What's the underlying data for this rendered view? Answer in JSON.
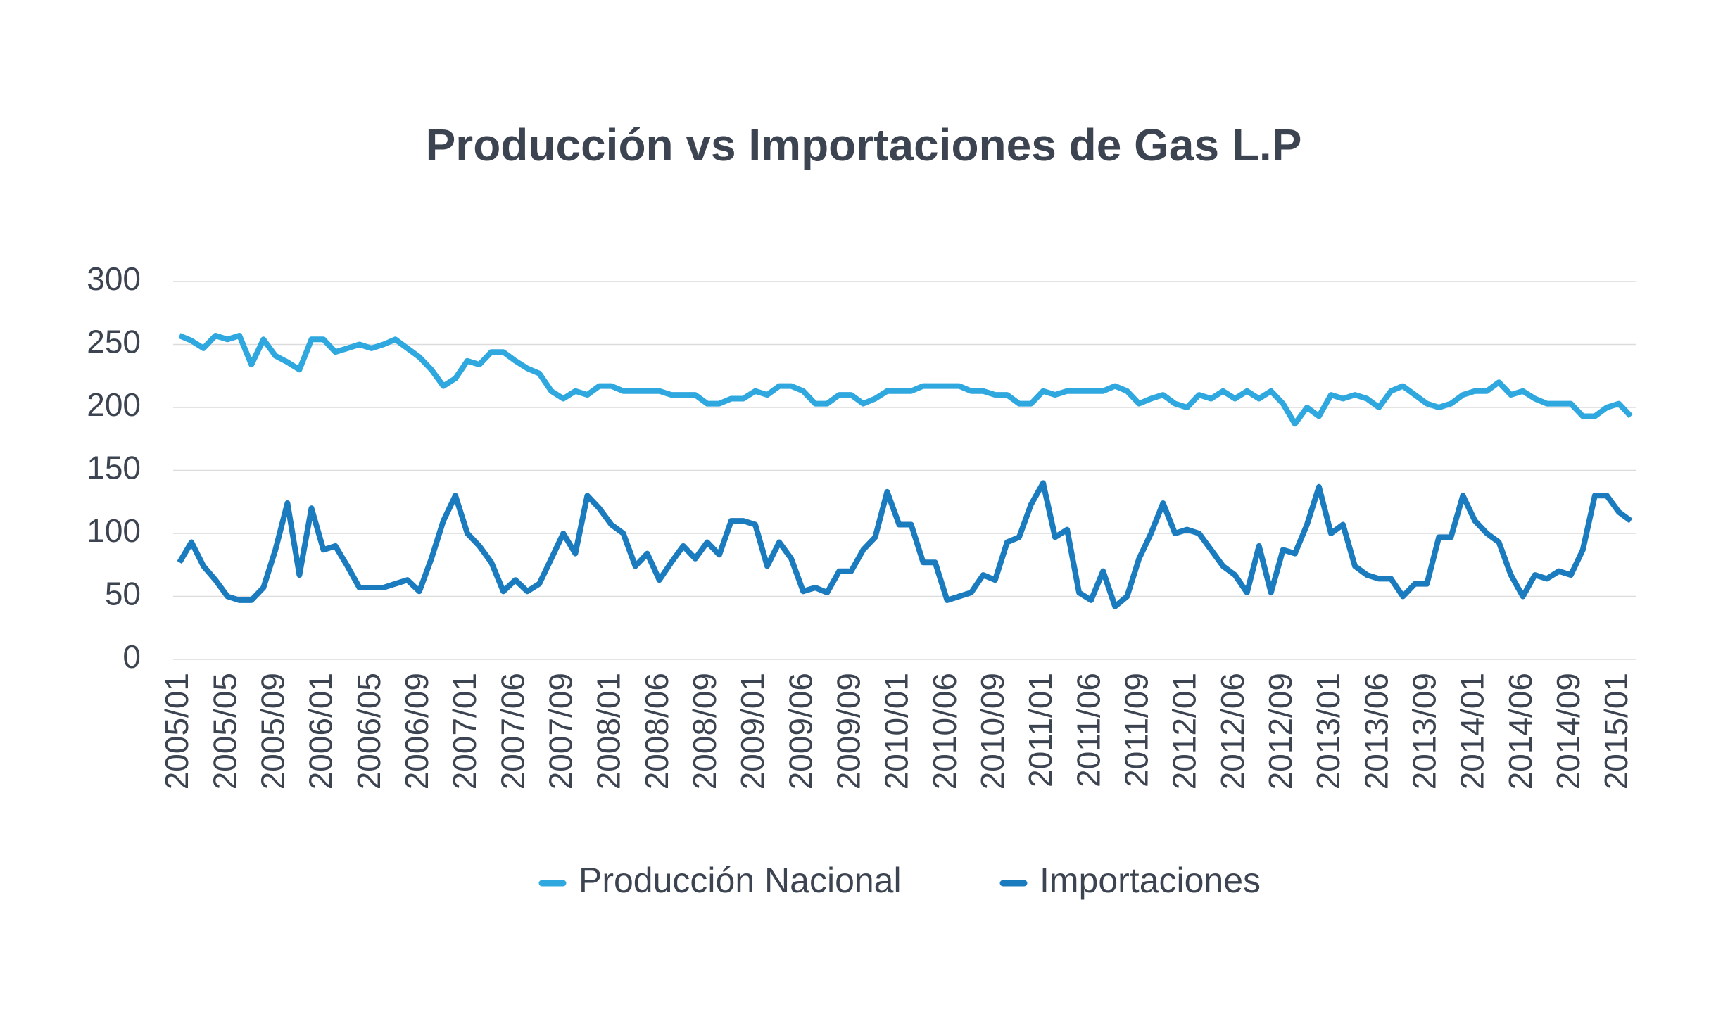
{
  "chart_data": {
    "type": "line",
    "title": "Producción vs Importaciones de Gas L.P",
    "categories": [
      "2005/01",
      null,
      null,
      null,
      "2005/05",
      null,
      null,
      null,
      "2005/09",
      null,
      null,
      null,
      "2006/01",
      null,
      null,
      null,
      "2006/05",
      null,
      null,
      null,
      "2006/09",
      null,
      null,
      null,
      "2007/01",
      null,
      null,
      null,
      "2007/06",
      null,
      null,
      null,
      "2007/09",
      null,
      null,
      null,
      "2008/01",
      null,
      null,
      null,
      "2008/06",
      null,
      null,
      null,
      "2008/09",
      null,
      null,
      null,
      "2009/01",
      null,
      null,
      null,
      "2009/06",
      null,
      null,
      null,
      "2009/09",
      null,
      null,
      null,
      "2010/01",
      null,
      null,
      null,
      "2010/06",
      null,
      null,
      null,
      "2010/09",
      null,
      null,
      null,
      "2011/01",
      null,
      null,
      null,
      "2011/06",
      null,
      null,
      null,
      "2011/09",
      null,
      null,
      null,
      "2012/01",
      null,
      null,
      null,
      "2012/06",
      null,
      null,
      null,
      "2012/09",
      null,
      null,
      null,
      "2013/01",
      null,
      null,
      null,
      "2013/06",
      null,
      null,
      null,
      "2013/09",
      null,
      null,
      null,
      "2014/01",
      null,
      null,
      null,
      "2014/06",
      null,
      null,
      null,
      "2014/09",
      null,
      null,
      null,
      "2015/01",
      null
    ],
    "series": [
      {
        "name": "Producción Nacional",
        "color": "#2ea8df",
        "values": [
          257,
          253,
          247,
          257,
          254,
          257,
          234,
          254,
          241,
          236,
          230,
          254,
          254,
          244,
          247,
          250,
          247,
          250,
          254,
          247,
          240,
          230,
          217,
          223,
          237,
          234,
          244,
          244,
          237,
          231,
          227,
          213,
          207,
          213,
          210,
          217,
          217,
          213,
          213,
          213,
          213,
          210,
          210,
          210,
          203,
          203,
          207,
          207,
          213,
          210,
          217,
          217,
          213,
          203,
          203,
          210,
          210,
          203,
          207,
          213,
          213,
          213,
          217,
          217,
          217,
          217,
          213,
          213,
          210,
          210,
          203,
          203,
          213,
          210,
          213,
          213,
          213,
          213,
          217,
          213,
          203,
          207,
          210,
          203,
          200,
          210,
          207,
          213,
          207,
          213,
          207,
          213,
          203,
          187,
          200,
          193,
          210,
          207,
          210,
          207,
          200,
          213,
          217,
          210,
          203,
          200,
          203,
          210,
          213,
          213,
          220,
          210,
          213,
          207,
          203,
          203,
          203,
          193,
          193,
          200,
          203,
          193
        ]
      },
      {
        "name": "Importaciones",
        "color": "#1a7bbf",
        "values": [
          77,
          93,
          74,
          63,
          50,
          47,
          47,
          57,
          87,
          124,
          67,
          120,
          87,
          90,
          74,
          57,
          57,
          57,
          60,
          63,
          54,
          80,
          110,
          130,
          100,
          90,
          77,
          54,
          63,
          54,
          60,
          80,
          100,
          84,
          130,
          120,
          107,
          100,
          74,
          84,
          63,
          77,
          90,
          80,
          93,
          83,
          110,
          110,
          107,
          74,
          93,
          80,
          54,
          57,
          53,
          70,
          70,
          87,
          97,
          133,
          107,
          107,
          77,
          77,
          47,
          50,
          53,
          67,
          63,
          93,
          97,
          123,
          140,
          97,
          103,
          53,
          47,
          70,
          42,
          50,
          80,
          100,
          124,
          100,
          103,
          100,
          87,
          74,
          67,
          53,
          90,
          53,
          87,
          84,
          107,
          137,
          100,
          107,
          74,
          67,
          64,
          64,
          50,
          60,
          60,
          97,
          97,
          130,
          110,
          100,
          93,
          67,
          50,
          67,
          64,
          70,
          67,
          87,
          130,
          130,
          117,
          110
        ]
      }
    ],
    "ylim": [
      0,
      300
    ],
    "yticks": [
      0,
      50,
      100,
      150,
      200,
      250,
      300
    ],
    "grid": true
  }
}
